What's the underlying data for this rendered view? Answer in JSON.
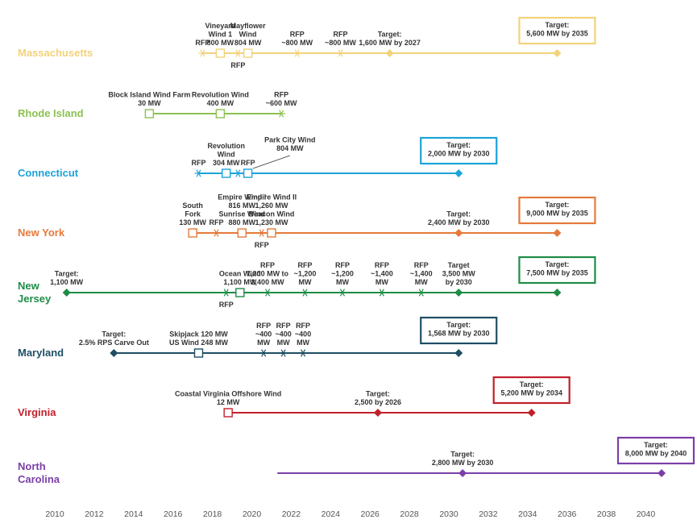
{
  "chart_data": {
    "type": "timeline",
    "title": "",
    "xlabel": "",
    "ylabel": "",
    "xlim": [
      2010,
      2040
    ],
    "x_ticks": [
      "2010",
      "2012",
      "2014",
      "2016",
      "2018",
      "2020",
      "2022",
      "2024",
      "2026",
      "2028",
      "2030",
      "2032",
      "2034",
      "2036",
      "2038",
      "2040"
    ],
    "x_tick_values": [
      2010,
      2012,
      2014,
      2016,
      2018,
      2020,
      2022,
      2024,
      2026,
      2028,
      2030,
      2032,
      2034,
      2036,
      2038,
      2040
    ],
    "legend": "none",
    "series": [
      {
        "name": "Massachusetts",
        "label_lines": [
          "Massachusetts"
        ],
        "color": "#F2D27A",
        "range": [
          2017.5,
          2035.5
        ],
        "events": [
          {
            "x": 2017.5,
            "marker": "asterisk",
            "label": [
              "RFP"
            ],
            "label_pos": "above"
          },
          {
            "x": 2018.4,
            "marker": "square",
            "label": [
              "Vineyard",
              "Wind 1",
              "800 MW"
            ],
            "label_pos": "above"
          },
          {
            "x": 2019.3,
            "marker": "asterisk",
            "label": [
              "RFP"
            ],
            "label_pos": "below"
          },
          {
            "x": 2019.8,
            "marker": "square",
            "label": [
              "Mayflower",
              "Wind",
              "804 MW"
            ],
            "label_pos": "above"
          },
          {
            "x": 2022.3,
            "marker": "asterisk",
            "label": [
              "RFP",
              "~800 MW"
            ],
            "label_pos": "above"
          },
          {
            "x": 2024.5,
            "marker": "asterisk",
            "label": [
              "RFP",
              "~800 MW"
            ],
            "label_pos": "above"
          },
          {
            "x": 2027.0,
            "marker": "diamond",
            "label": [
              "Target:",
              "1,600 MW by 2027"
            ],
            "label_pos": "above"
          },
          {
            "x": 2035.5,
            "marker": "diamond",
            "label": [
              "Target:",
              "5,600 MW by 2035"
            ],
            "label_pos": "box"
          }
        ]
      },
      {
        "name": "Rhode Island",
        "label_lines": [
          "Rhode Island"
        ],
        "color": "#8CC152",
        "range": [
          2014.8,
          2021.5
        ],
        "events": [
          {
            "x": 2014.8,
            "marker": "square",
            "label": [
              "Block Island Wind Farm",
              "30 MW"
            ],
            "label_pos": "above"
          },
          {
            "x": 2018.4,
            "marker": "square",
            "label": [
              "Revolution Wind",
              "400 MW"
            ],
            "label_pos": "above"
          },
          {
            "x": 2021.5,
            "marker": "asterisk",
            "label": [
              "RFP",
              "~600 MW"
            ],
            "label_pos": "above"
          }
        ]
      },
      {
        "name": "Connecticut",
        "label_lines": [
          "Connecticut"
        ],
        "color": "#1BA3D8",
        "range": [
          2017.3,
          2030.5
        ],
        "events": [
          {
            "x": 2017.3,
            "marker": "asterisk",
            "label": [
              "RFP"
            ],
            "label_pos": "above"
          },
          {
            "x": 2018.7,
            "marker": "square",
            "label": [
              "Revolution",
              "Wind",
              "304 MW"
            ],
            "label_pos": "above"
          },
          {
            "x": 2019.3,
            "marker": "asterisk",
            "label": [],
            "label_pos": "none"
          },
          {
            "x": 2019.8,
            "marker": "square",
            "label": [
              "RFP"
            ],
            "label_pos": "above"
          },
          {
            "x": 2020.3,
            "marker": "leader",
            "label": [
              "Park City Wind",
              "804 MW"
            ],
            "label_pos": "above"
          },
          {
            "x": 2030.5,
            "marker": "diamond",
            "label": [
              "Target:",
              "2,000 MW by 2030"
            ],
            "label_pos": "box"
          }
        ]
      },
      {
        "name": "New York",
        "label_lines": [
          "New York"
        ],
        "color": "#E5793A",
        "range": [
          2017.0,
          2035.5
        ],
        "events": [
          {
            "x": 2017.0,
            "marker": "square",
            "label": [
              "South",
              "Fork",
              "130 MW"
            ],
            "label_pos": "above"
          },
          {
            "x": 2018.2,
            "marker": "asterisk",
            "label": [
              "RFP"
            ],
            "label_pos": "above"
          },
          {
            "x": 2019.5,
            "marker": "square",
            "label": [
              "Empire Wind I",
              "816 MW",
              "Sunrise Wind",
              "880 MW"
            ],
            "label_pos": "above"
          },
          {
            "x": 2020.5,
            "marker": "asterisk",
            "label": [
              "RFP"
            ],
            "label_pos": "below"
          },
          {
            "x": 2021.0,
            "marker": "square",
            "label": [
              "Empire Wind II",
              "1,260 MW",
              "Beacon Wind",
              "1,230 MW"
            ],
            "label_pos": "above"
          },
          {
            "x": 2030.5,
            "marker": "diamond",
            "label": [
              "Target:",
              "2,400 MW by 2030"
            ],
            "label_pos": "above"
          },
          {
            "x": 2035.5,
            "marker": "diamond",
            "label": [
              "Target:",
              "9,000 MW  by 2035"
            ],
            "label_pos": "box"
          }
        ]
      },
      {
        "name": "New Jersey",
        "label_lines": [
          "New",
          "Jersey"
        ],
        "color": "#1E8C47",
        "range": [
          2010.6,
          2035.5
        ],
        "events": [
          {
            "x": 2010.6,
            "marker": "diamond",
            "label": [
              "Target:",
              "1,100 MW"
            ],
            "label_pos": "above"
          },
          {
            "x": 2018.7,
            "marker": "asterisk",
            "label": [
              "RFP"
            ],
            "label_pos": "below"
          },
          {
            "x": 2019.4,
            "marker": "square",
            "label": [
              "Ocean Wind",
              "1,100 MW"
            ],
            "label_pos": "above"
          },
          {
            "x": 2020.8,
            "marker": "asterisk",
            "label": [
              "RFP",
              "1,200 MW to",
              "2,400 MW"
            ],
            "label_pos": "above"
          },
          {
            "x": 2022.7,
            "marker": "asterisk",
            "label": [
              "RFP",
              "~1,200",
              "MW"
            ],
            "label_pos": "above"
          },
          {
            "x": 2024.6,
            "marker": "asterisk",
            "label": [
              "RFP",
              "~1,200",
              "MW"
            ],
            "label_pos": "above"
          },
          {
            "x": 2026.6,
            "marker": "asterisk",
            "label": [
              "RFP",
              "~1,400",
              "MW"
            ],
            "label_pos": "above"
          },
          {
            "x": 2028.6,
            "marker": "asterisk",
            "label": [
              "RFP",
              "~1,400",
              "MW"
            ],
            "label_pos": "above"
          },
          {
            "x": 2030.5,
            "marker": "diamond",
            "label": [
              "Target",
              "3,500 MW",
              "by 2030"
            ],
            "label_pos": "above"
          },
          {
            "x": 2035.5,
            "marker": "diamond",
            "label": [
              "Target:",
              "7,500 MW by 2035"
            ],
            "label_pos": "box"
          }
        ]
      },
      {
        "name": "Maryland",
        "label_lines": [
          "Maryland"
        ],
        "color": "#1F4E64",
        "range": [
          2013.0,
          2030.5
        ],
        "events": [
          {
            "x": 2013.0,
            "marker": "diamond",
            "label": [
              "Target:",
              "2.5% RPS Carve Out"
            ],
            "label_pos": "above"
          },
          {
            "x": 2017.3,
            "marker": "square",
            "label": [
              "Skipjack 120 MW",
              "US Wind 248 MW"
            ],
            "label_pos": "above"
          },
          {
            "x": 2020.6,
            "marker": "asterisk",
            "label": [
              "RFP",
              "~400",
              "MW"
            ],
            "label_pos": "above"
          },
          {
            "x": 2021.6,
            "marker": "asterisk",
            "label": [
              "RFP",
              "~400",
              "MW"
            ],
            "label_pos": "above"
          },
          {
            "x": 2022.6,
            "marker": "asterisk",
            "label": [
              "RFP",
              "~400",
              "MW"
            ],
            "label_pos": "above"
          },
          {
            "x": 2030.5,
            "marker": "diamond",
            "label": [
              "Target:",
              "1,568 MW by 2030"
            ],
            "label_pos": "box"
          }
        ]
      },
      {
        "name": "Virginia",
        "label_lines": [
          "Virginia"
        ],
        "color": "#C0202A",
        "range": [
          2018.8,
          2034.2
        ],
        "events": [
          {
            "x": 2018.8,
            "marker": "square",
            "label": [
              "Coastal Virginia Offshore Wind",
              "12 MW"
            ],
            "label_pos": "above"
          },
          {
            "x": 2026.4,
            "marker": "diamond",
            "label": [
              "Target:",
              "2,500 by 2026"
            ],
            "label_pos": "above"
          },
          {
            "x": 2034.2,
            "marker": "diamond",
            "label": [
              "Target:",
              "5,200 MW by 2034"
            ],
            "label_pos": "box"
          }
        ]
      },
      {
        "name": "North Carolina",
        "label_lines": [
          "North",
          "Carolina"
        ],
        "color": "#7B3FA8",
        "range": [
          2021.3,
          2040.8
        ],
        "events": [
          {
            "x": 2030.7,
            "marker": "diamond",
            "label": [
              "Target:",
              "2,800 MW by 2030"
            ],
            "label_pos": "above"
          },
          {
            "x": 2040.8,
            "marker": "diamond",
            "label": [
              "Target:",
              "8,000 MW by 2040"
            ],
            "label_pos": "box"
          }
        ]
      }
    ]
  }
}
